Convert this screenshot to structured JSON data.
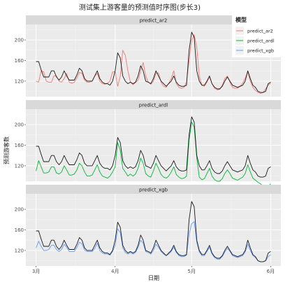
{
  "chart_data": {
    "type": "line",
    "title": "测试集上游客量的预测值时序图(步长3)",
    "xlabel": "日期",
    "ylabel": "预测游客数",
    "x_ticks": [
      "3月",
      "4月",
      "5月",
      "6月"
    ],
    "x_tick_days": [
      0,
      31,
      61,
      92
    ],
    "ylim": [
      90,
      230
    ],
    "y_ticks": [
      120,
      160,
      200
    ],
    "grid": true,
    "legend": {
      "title": "模型",
      "position": "top-right",
      "entries": [
        "predict_ar2",
        "predict_ardl",
        "predict_xgb"
      ]
    },
    "colors": {
      "actual": "#1a1a1a",
      "predict_ar2": "#F8766D",
      "predict_ardl": "#00BA38",
      "predict_xgb": "#619CFF"
    },
    "days": [
      0,
      1,
      2,
      3,
      4,
      5,
      6,
      7,
      8,
      9,
      10,
      11,
      12,
      13,
      14,
      15,
      16,
      17,
      18,
      19,
      20,
      21,
      22,
      23,
      24,
      25,
      26,
      27,
      28,
      29,
      30,
      31,
      32,
      33,
      34,
      35,
      36,
      37,
      38,
      39,
      40,
      41,
      42,
      43,
      44,
      45,
      46,
      47,
      48,
      49,
      50,
      51,
      52,
      53,
      54,
      55,
      56,
      57,
      58,
      59,
      60,
      61,
      62,
      63,
      64,
      65,
      66,
      67,
      68,
      69,
      70,
      71,
      72,
      73,
      74,
      75,
      76,
      77,
      78,
      79,
      80,
      81,
      82,
      83,
      84,
      85,
      86,
      87,
      88,
      89,
      90,
      91,
      92
    ],
    "actual": [
      158,
      158,
      142,
      128,
      128,
      128,
      140,
      140,
      128,
      122,
      128,
      140,
      130,
      122,
      122,
      122,
      132,
      145,
      140,
      125,
      120,
      120,
      120,
      130,
      140,
      125,
      118,
      115,
      115,
      112,
      120,
      140,
      175,
      165,
      130,
      120,
      115,
      118,
      115,
      118,
      130,
      150,
      140,
      120,
      118,
      115,
      125,
      140,
      130,
      120,
      115,
      110,
      115,
      120,
      130,
      118,
      112,
      110,
      110,
      112,
      180,
      215,
      205,
      140,
      120,
      112,
      112,
      120,
      130,
      115,
      108,
      105,
      105,
      110,
      120,
      128,
      120,
      112,
      110,
      108,
      110,
      112,
      120,
      140,
      125,
      112,
      108,
      100,
      98,
      98,
      100,
      115,
      118
    ],
    "panels": [
      {
        "name": "predict_ar2",
        "values": [
          120,
          118,
          140,
          138,
          120,
          118,
          118,
          130,
          130,
          120,
          118,
          125,
          135,
          118,
          116,
          118,
          126,
          137,
          135,
          122,
          118,
          118,
          120,
          130,
          135,
          120,
          115,
          114,
          116,
          120,
          138,
          138,
          110,
          130,
          180,
          170,
          140,
          118,
          113,
          117,
          122,
          140,
          156,
          130,
          118,
          114,
          120,
          135,
          136,
          118,
          110,
          108,
          116,
          125,
          140,
          115,
          108,
          106,
          108,
          118,
          160,
          200,
          210,
          185,
          130,
          112,
          110,
          118,
          128,
          115,
          106,
          103,
          104,
          112,
          125,
          130,
          118,
          108,
          106,
          106,
          110,
          116,
          126,
          138,
          120,
          108,
          102,
          98,
          96,
          98,
          105,
          112,
          116
        ]
      },
      {
        "name": "predict_ardl",
        "values": [
          110,
          130,
          118,
          106,
          106,
          108,
          118,
          118,
          106,
          104,
          108,
          120,
          112,
          102,
          102,
          104,
          112,
          125,
          120,
          108,
          100,
          100,
          102,
          112,
          122,
          108,
          100,
          98,
          96,
          100,
          108,
          118,
          165,
          150,
          115,
          108,
          100,
          104,
          100,
          104,
          115,
          135,
          125,
          105,
          100,
          98,
          110,
          125,
          115,
          103,
          98,
          96,
          100,
          108,
          118,
          103,
          98,
          95,
          96,
          100,
          170,
          205,
          195,
          135,
          98,
          93,
          95,
          105,
          115,
          100,
          93,
          90,
          90,
          95,
          105,
          112,
          105,
          96,
          94,
          92,
          95,
          98,
          105,
          122,
          108,
          96,
          92,
          88,
          85,
          80,
          76,
          80,
          85
        ]
      },
      {
        "name": "predict_xgb",
        "values": [
          125,
          138,
          128,
          120,
          120,
          122,
          130,
          130,
          122,
          118,
          122,
          132,
          126,
          118,
          118,
          118,
          126,
          136,
          133,
          121,
          118,
          118,
          118,
          124,
          134,
          120,
          115,
          113,
          113,
          111,
          118,
          130,
          162,
          155,
          125,
          116,
          113,
          116,
          113,
          116,
          126,
          140,
          134,
          118,
          116,
          113,
          120,
          132,
          126,
          118,
          113,
          110,
          113,
          118,
          126,
          116,
          110,
          108,
          108,
          111,
          152,
          172,
          176,
          136,
          117,
          110,
          110,
          118,
          126,
          113,
          106,
          103,
          103,
          108,
          117,
          124,
          118,
          110,
          108,
          106,
          108,
          110,
          117,
          132,
          120,
          110,
          106,
          100,
          98,
          98,
          100,
          108,
          112
        ]
      }
    ]
  }
}
